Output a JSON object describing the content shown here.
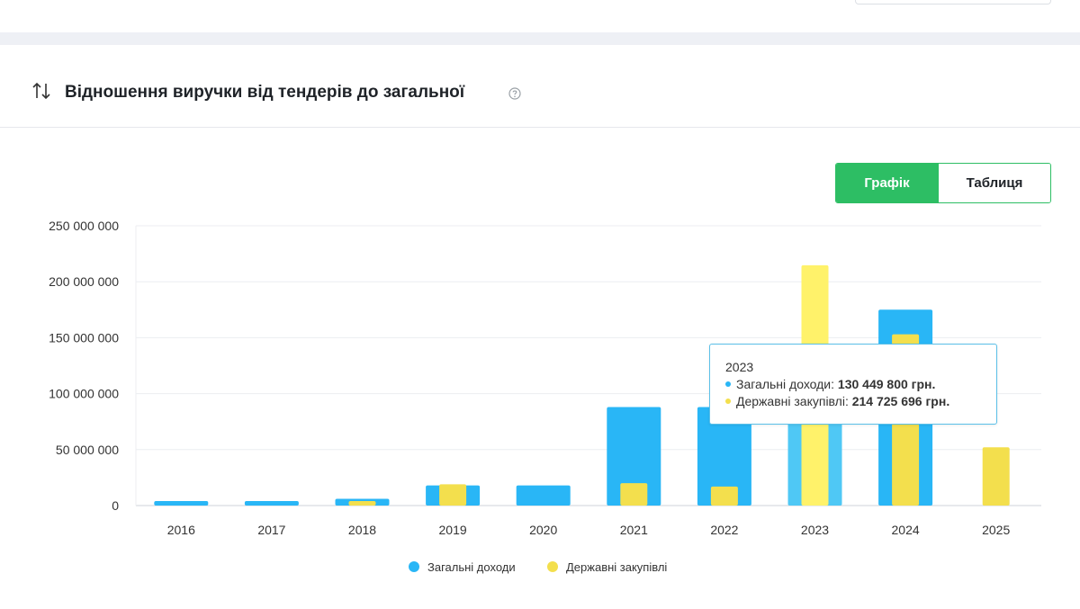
{
  "header": {
    "title": "Відношення виручки від тендерів до загальної"
  },
  "view_toggle": {
    "graph_label": "Графік",
    "table_label": "Таблиця",
    "active": "graph"
  },
  "colors": {
    "accent_green": "#2dbe64",
    "series_total": "#29b6f6",
    "series_gov": "#f3df4d",
    "series_total_highlight": "#4fc8f5",
    "series_gov_highlight": "#fff26a"
  },
  "tooltip": {
    "year": "2023",
    "rows": [
      {
        "label": "Загальні доходи: ",
        "value": "130 449 800 грн."
      },
      {
        "label": "Державні закупівлі: ",
        "value": "214 725 696 грн."
      }
    ]
  },
  "chart_data": {
    "type": "bar",
    "categories": [
      "2016",
      "2017",
      "2018",
      "2019",
      "2020",
      "2021",
      "2022",
      "2023",
      "2024",
      "2025"
    ],
    "series": [
      {
        "name": "Загальні доходи",
        "values": [
          4000000,
          4000000,
          6000000,
          18000000,
          18000000,
          88000000,
          88000000,
          130449800,
          175000000,
          null
        ]
      },
      {
        "name": "Державні закупівлі",
        "values": [
          null,
          null,
          4000000,
          19000000,
          null,
          20000000,
          17000000,
          214725696,
          153000000,
          52000000
        ]
      }
    ],
    "y_ticks": [
      "250 000 000",
      "200 000 000",
      "150 000 000",
      "100 000 000",
      "50 000 000",
      "0"
    ],
    "ylim": [
      0,
      250000000
    ],
    "grid": true,
    "legend": "bottom-center",
    "highlighted_category": "2023"
  }
}
